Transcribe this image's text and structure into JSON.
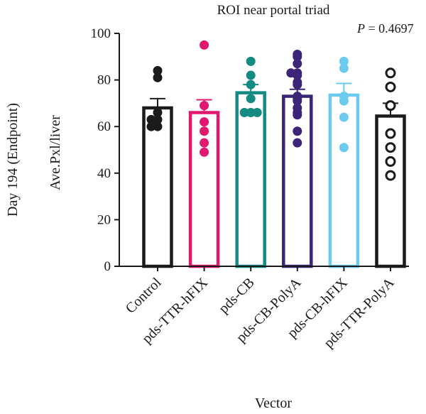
{
  "chart_data": {
    "type": "bar",
    "title": "ROI near portal triad",
    "annotation": {
      "p_symbol": "P",
      "p_value": " = 0.4697"
    },
    "ylabel_outer": "Day 194 (Endpoint)",
    "ylabel": "Ave.Pxl/liver",
    "xlabel": "Vector",
    "ylim": [
      0,
      100
    ],
    "yticks": [
      "0",
      "20",
      "40",
      "60",
      "80",
      "100"
    ],
    "categories": [
      "Control",
      "pds-TTR-hFIX",
      "pds-CB",
      "pds-CB-PolyA",
      "pds-CB-hFIX",
      "pds-TTR-PolyA"
    ],
    "values": [
      68,
      66,
      74.5,
      73,
      73.5,
      64.5
    ],
    "errors": [
      4,
      5.5,
      3.5,
      3,
      5,
      5.5
    ],
    "points": [
      [
        84,
        81,
        66,
        63,
        63,
        60,
        60
      ],
      [
        95,
        69,
        62,
        58,
        53,
        49
      ],
      [
        88,
        82,
        78,
        72,
        66,
        66,
        66
      ],
      [
        91,
        90,
        87,
        83,
        83,
        82,
        79,
        78,
        73,
        72,
        71,
        68,
        66,
        65,
        58,
        53
      ],
      [
        88,
        85,
        73,
        71,
        64,
        51
      ],
      [
        83,
        77,
        69,
        57,
        51,
        45,
        39
      ]
    ],
    "colors": [
      "#1b1b1b",
      "#e0186e",
      "#138a82",
      "#3c2577",
      "#6ccaee",
      "#1b1b1b"
    ],
    "marker_fill": [
      "filled",
      "filled",
      "filled",
      "filled",
      "filled",
      "open"
    ],
    "grid": false
  }
}
